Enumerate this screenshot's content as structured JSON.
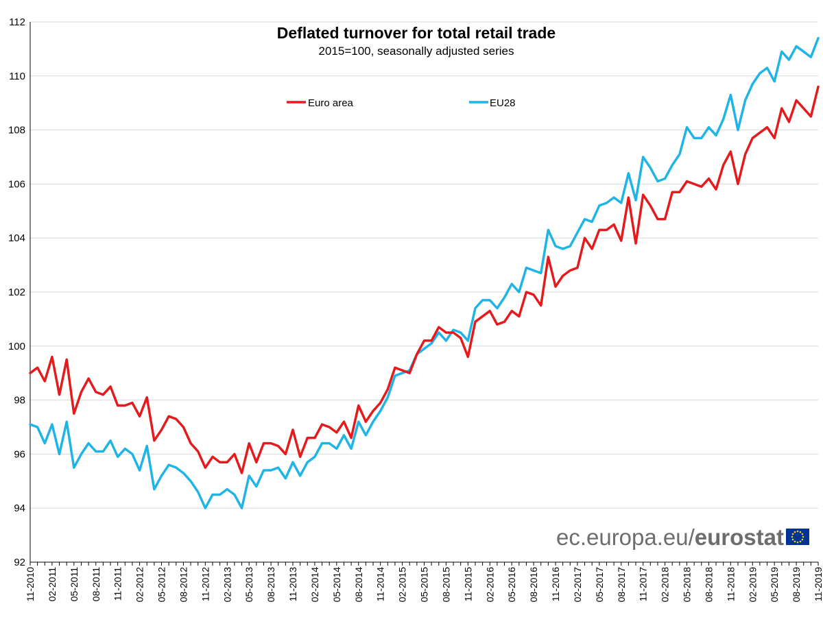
{
  "chart_data": {
    "type": "line",
    "title": "Deflated turnover for total retail trade",
    "subtitle": "2015=100, seasonally adjusted series",
    "xlabel": "",
    "ylabel": "",
    "ylim": [
      92,
      112
    ],
    "yticks": [
      "92",
      "94",
      "96",
      "98",
      "100",
      "102",
      "104",
      "106",
      "108",
      "110",
      "112"
    ],
    "grid": true,
    "legend_placement": "top-center",
    "x_tick_labels": [
      "11-2010",
      "02-2011",
      "05-2011",
      "08-2011",
      "11-2011",
      "02-2012",
      "05-2012",
      "08-2012",
      "11-2012",
      "02-2013",
      "05-2013",
      "08-2013",
      "11-2013",
      "02-2014",
      "05-2014",
      "08-2014",
      "11-2014",
      "02-2015",
      "05-2015",
      "08-2015",
      "11-2015",
      "02-2016",
      "05-2016",
      "08-2016",
      "11-2016",
      "02-2017",
      "05-2017",
      "08-2017",
      "11-2017",
      "02-2018",
      "05-2018",
      "08-2018",
      "11-2018",
      "02-2019",
      "05-2019",
      "08-2019",
      "11-2019"
    ],
    "x_tick_step": 3,
    "series": [
      {
        "name": "Euro area",
        "color": "#e41a1c",
        "values": [
          99.0,
          99.2,
          98.7,
          99.6,
          98.2,
          99.5,
          97.5,
          98.3,
          98.8,
          98.3,
          98.2,
          98.5,
          97.8,
          97.8,
          97.9,
          97.4,
          98.1,
          96.5,
          96.9,
          97.4,
          97.3,
          97.0,
          96.4,
          96.1,
          95.5,
          95.9,
          95.7,
          95.7,
          96.0,
          95.3,
          96.4,
          95.7,
          96.4,
          96.4,
          96.3,
          96.0,
          96.9,
          95.9,
          96.6,
          96.6,
          97.1,
          97.0,
          96.8,
          97.2,
          96.6,
          97.8,
          97.2,
          97.6,
          97.9,
          98.4,
          99.2,
          99.1,
          99.0,
          99.7,
          100.2,
          100.2,
          100.7,
          100.5,
          100.5,
          100.3,
          99.6,
          100.9,
          101.1,
          101.3,
          100.8,
          100.9,
          101.3,
          101.1,
          102.0,
          101.9,
          101.5,
          103.3,
          102.2,
          102.6,
          102.8,
          102.9,
          104.0,
          103.6,
          104.3,
          104.3,
          104.5,
          103.9,
          105.5,
          103.8,
          105.6,
          105.2,
          104.7,
          104.7,
          105.7,
          105.7,
          106.1,
          106.0,
          105.9,
          106.2,
          105.8,
          106.7,
          107.2,
          106.0,
          107.1,
          107.7,
          107.9,
          108.1,
          107.7,
          108.8,
          108.3,
          109.1,
          108.8,
          108.5,
          109.6
        ]
      },
      {
        "name": "EU28",
        "color": "#1fb4e6",
        "values": [
          97.1,
          97.0,
          96.4,
          97.1,
          96.0,
          97.2,
          95.5,
          96.0,
          96.4,
          96.1,
          96.1,
          96.5,
          95.9,
          96.2,
          96.0,
          95.4,
          96.3,
          94.7,
          95.2,
          95.6,
          95.5,
          95.3,
          95.0,
          94.6,
          94.0,
          94.5,
          94.5,
          94.7,
          94.5,
          94.0,
          95.2,
          94.8,
          95.4,
          95.4,
          95.5,
          95.1,
          95.7,
          95.2,
          95.7,
          95.9,
          96.4,
          96.4,
          96.2,
          96.7,
          96.2,
          97.2,
          96.7,
          97.2,
          97.6,
          98.1,
          98.9,
          99.0,
          99.1,
          99.7,
          99.9,
          100.1,
          100.5,
          100.2,
          100.6,
          100.5,
          100.2,
          101.4,
          101.7,
          101.7,
          101.4,
          101.8,
          102.3,
          102.0,
          102.9,
          102.8,
          102.7,
          104.3,
          103.7,
          103.6,
          103.7,
          104.2,
          104.7,
          104.6,
          105.2,
          105.3,
          105.5,
          105.3,
          106.4,
          105.4,
          107.0,
          106.6,
          106.1,
          106.2,
          106.7,
          107.1,
          108.1,
          107.7,
          107.7,
          108.1,
          107.8,
          108.4,
          109.3,
          108.0,
          109.1,
          109.7,
          110.1,
          110.3,
          109.8,
          110.9,
          110.6,
          111.1,
          110.9,
          110.7,
          111.4
        ]
      }
    ]
  },
  "branding": {
    "domain": "ec.europa.eu/",
    "name": "eurostat",
    "flag_icon": "eu-flag-icon"
  }
}
